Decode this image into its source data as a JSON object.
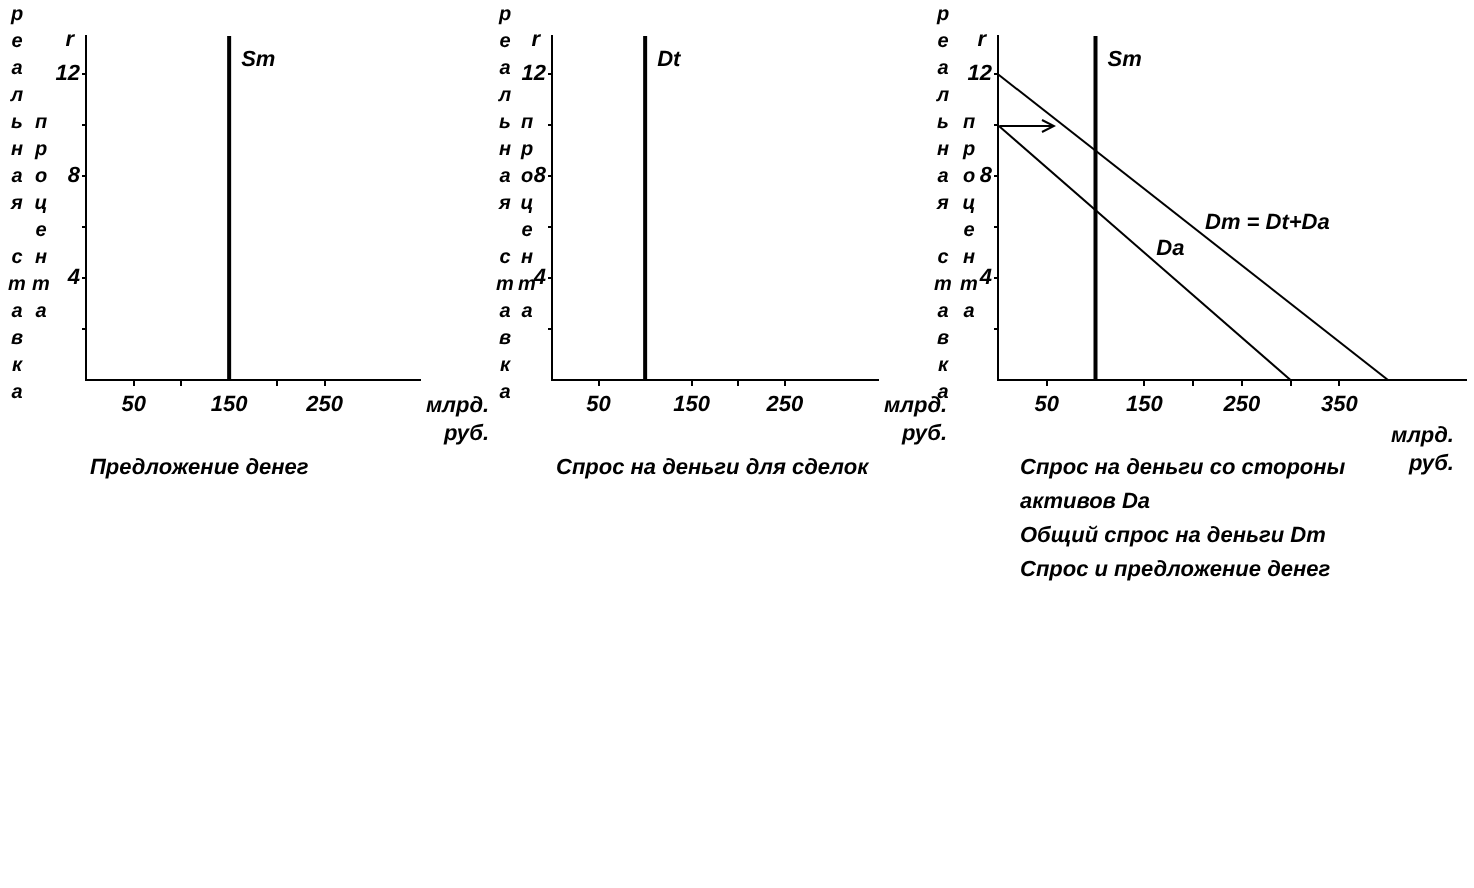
{
  "chart_data": [
    {
      "type": "line",
      "ylabel": "r",
      "xlabel": "млрд. руб.",
      "xlim": [
        0,
        350
      ],
      "ylim": [
        0,
        13.5
      ],
      "xticks": [
        50,
        {
          "value": 100,
          "label": null
        },
        150,
        {
          "value": 200,
          "label": null
        },
        250
      ],
      "yticks": [
        {
          "value": 2,
          "label": null
        },
        4,
        {
          "value": 6,
          "label": null
        },
        8,
        {
          "value": 10,
          "label": null
        },
        12
      ],
      "grid": false,
      "legend": false,
      "ref_lines": [
        {
          "axis": "x",
          "value": 150,
          "label": "Sm",
          "color": "#000000",
          "line_style": "solid"
        }
      ],
      "annotations": [
        "реальная ставка процента",
        "Предложение денег"
      ]
    },
    {
      "type": "line",
      "ylabel": "r",
      "xlabel": "млрд. руб.",
      "xlim": [
        0,
        350
      ],
      "ylim": [
        0,
        13.5
      ],
      "xticks": [
        50,
        {
          "value": 100,
          "label": null
        },
        150,
        {
          "value": 200,
          "label": null
        },
        250
      ],
      "yticks": [
        {
          "value": 2,
          "label": null
        },
        4,
        {
          "value": 6,
          "label": null
        },
        8,
        {
          "value": 10,
          "label": null
        },
        12
      ],
      "grid": false,
      "legend": false,
      "ref_lines": [
        {
          "axis": "x",
          "value": 100,
          "label": "Dt",
          "color": "#000000",
          "line_style": "solid"
        }
      ],
      "annotations": [
        "реальная ставка процента",
        "Спрос на деньги для сделок"
      ]
    },
    {
      "type": "line",
      "ylabel": "r",
      "xlabel": "млрд. руб.",
      "xlim": [
        0,
        480
      ],
      "ylim": [
        0,
        13.5
      ],
      "xticks": [
        50,
        {
          "value": 100,
          "label": null
        },
        150,
        {
          "value": 200,
          "label": null
        },
        250,
        {
          "value": 300,
          "label": null
        },
        350
      ],
      "yticks": [
        {
          "value": 2,
          "label": null
        },
        4,
        {
          "value": 6,
          "label": null
        },
        8,
        {
          "value": 10,
          "label": null
        },
        12
      ],
      "grid": false,
      "legend": false,
      "marker": "none",
      "line_style": "solid",
      "ref_lines": [
        {
          "axis": "x",
          "value": 100,
          "label": "Sm",
          "color": "#000000",
          "line_style": "solid"
        }
      ],
      "series": [
        {
          "name": "Dm = Dt+Da",
          "color": "#000000",
          "x": [
            0,
            400
          ],
          "values": [
            12,
            0
          ]
        },
        {
          "name": "Da",
          "color": "#000000",
          "x": [
            0,
            300
          ],
          "values": [
            10,
            0
          ]
        }
      ],
      "annotations": [
        "реальная ставка процента",
        "Спрос на деньги со стороны активов Da",
        "Общий спрос на деньги Dm",
        "Спрос и предложение денег"
      ]
    }
  ]
}
